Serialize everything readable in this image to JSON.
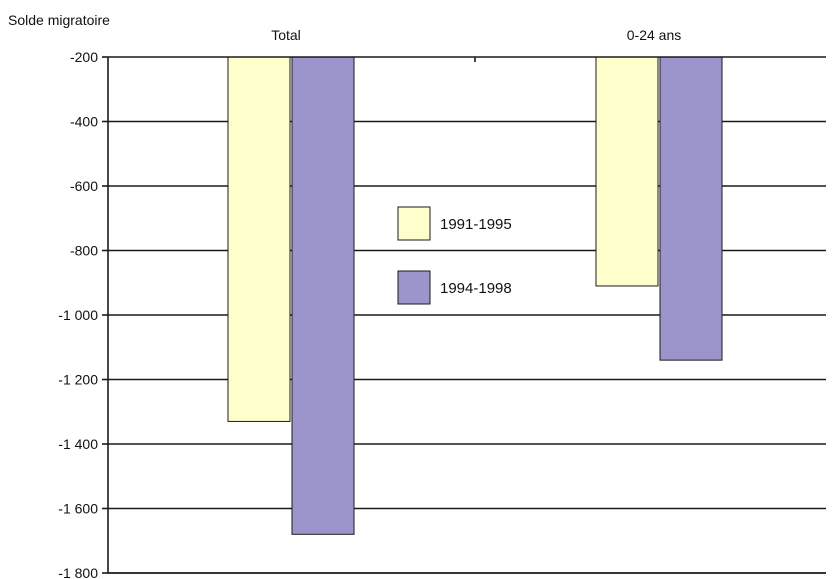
{
  "chart_data": {
    "type": "bar",
    "ylabel": "Solde migratoire",
    "categories": [
      "Total",
      "0-24 ans"
    ],
    "series": [
      {
        "name": "1991-1995",
        "color": "#FFFFCC",
        "values": [
          -1330,
          -910
        ]
      },
      {
        "name": "1994-1998",
        "color": "#9C95CB",
        "values": [
          -1680,
          -1140
        ]
      }
    ],
    "ylim": [
      -1800,
      -200
    ],
    "yticks": [
      -200,
      -400,
      -600,
      -800,
      -1000,
      -1200,
      -1400,
      -1600,
      -1800
    ],
    "ytick_labels": [
      "-200",
      "-400",
      "-600",
      "-800",
      "-1 000",
      "-1 200",
      "-1 400",
      "-1 600",
      "-1 800"
    ],
    "grid": true,
    "category_axis_position": "top",
    "legend_position": "center"
  }
}
